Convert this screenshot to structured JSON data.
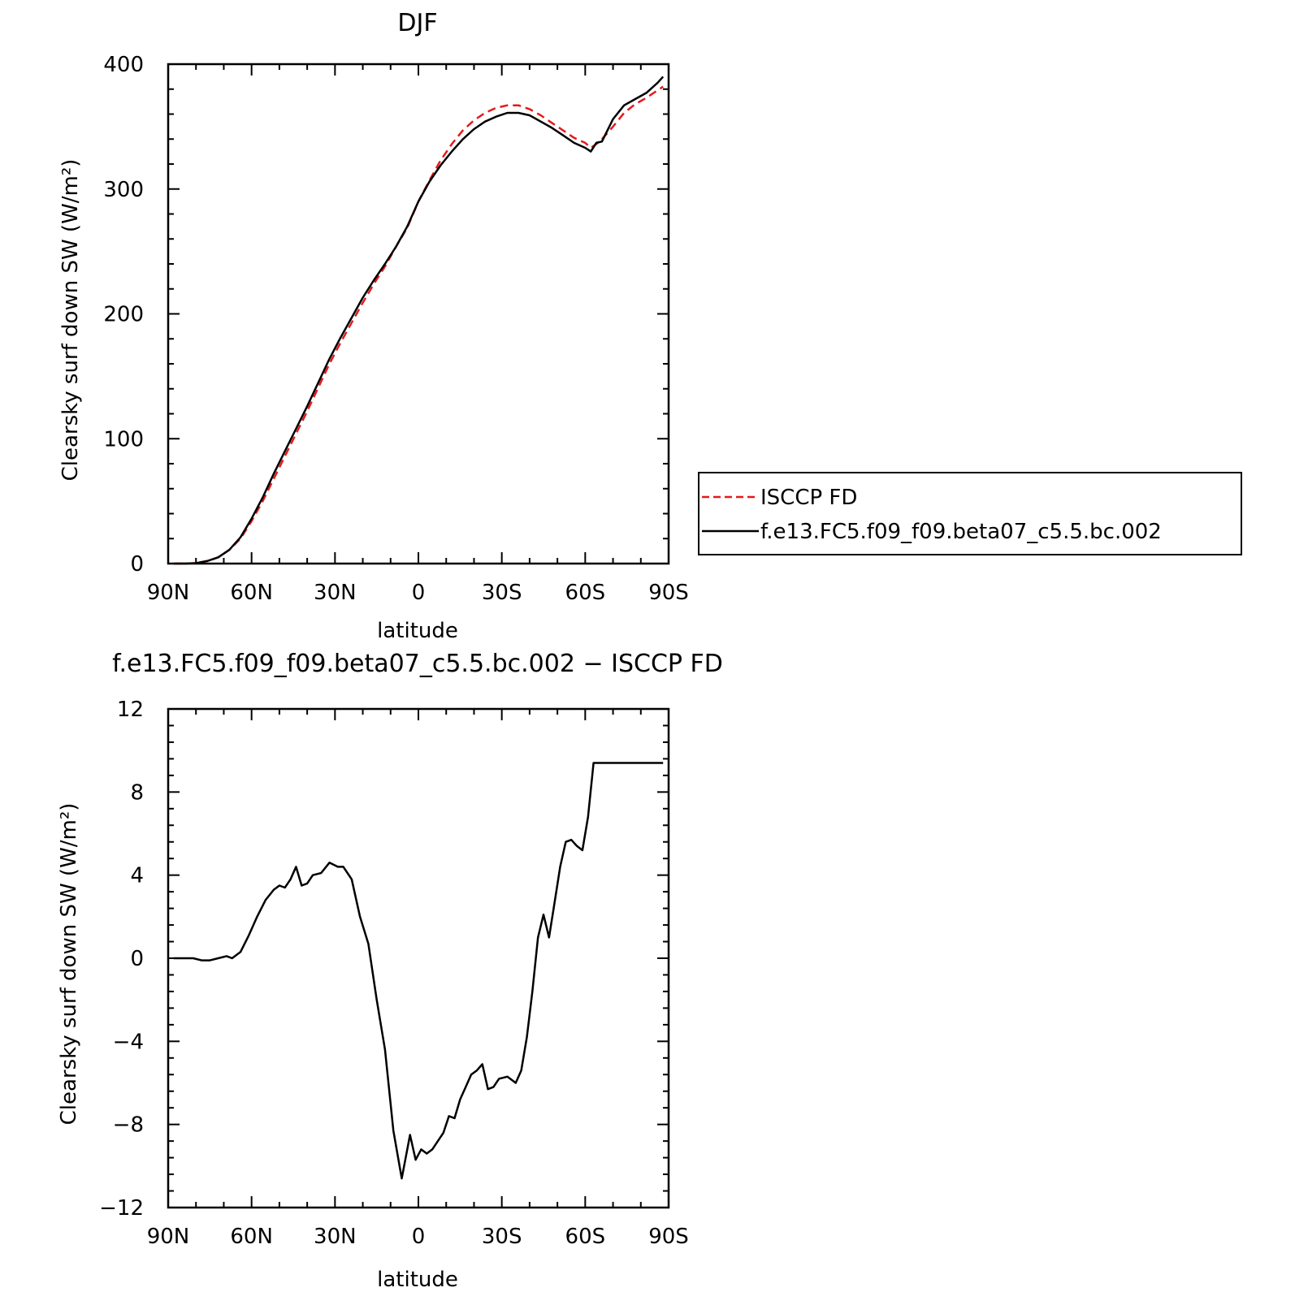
{
  "chart_data": [
    {
      "type": "line",
      "title": "DJF",
      "xlabel": "latitude",
      "ylabel": "Clearsky surf down SW (W/m²)",
      "xlim": [
        90,
        -90
      ],
      "ylim": [
        0,
        400
      ],
      "xticks": [
        90,
        60,
        30,
        0,
        -30,
        -60,
        -90
      ],
      "xtick_labels": [
        "90N",
        "60N",
        "30N",
        "0",
        "30S",
        "60S",
        "90S"
      ],
      "yticks": [
        0,
        100,
        200,
        300,
        400
      ],
      "ytick_labels": [
        "0",
        "100",
        "200",
        "300",
        "400"
      ],
      "grid": false,
      "legend_position": "right, outside plot",
      "series": [
        {
          "name": "ISCCP FD",
          "color": "#e41a1c",
          "dash": "dashed",
          "x": [
            88,
            84,
            80,
            76,
            72,
            68,
            64,
            60,
            56,
            52,
            48,
            44,
            40,
            36,
            32,
            28,
            24,
            20,
            16,
            12,
            8,
            4,
            0,
            -4,
            -8,
            -12,
            -16,
            -20,
            -24,
            -28,
            -32,
            -36,
            -40,
            -44,
            -48,
            -52,
            -56,
            -60,
            -62,
            -64,
            -66,
            -70,
            -74,
            -78,
            -82,
            -86,
            -88
          ],
          "y": [
            0,
            0,
            0.3,
            2,
            5,
            11,
            20,
            34,
            50,
            68,
            86,
            104,
            122,
            141,
            160,
            177,
            193,
            209,
            224,
            238,
            254,
            269,
            290,
            307,
            323,
            336,
            347,
            355,
            361,
            365,
            367,
            367,
            364,
            359,
            353,
            347,
            341,
            337,
            333,
            336,
            340,
            350,
            361,
            368,
            373,
            379,
            382
          ]
        },
        {
          "name": "f.e13.FC5.f09_f09.beta07_c5.5.bc.002",
          "color": "#000000",
          "dash": "solid",
          "x": [
            88,
            84,
            80,
            76,
            72,
            68,
            64,
            60,
            56,
            52,
            48,
            44,
            40,
            36,
            32,
            28,
            24,
            20,
            16,
            12,
            8,
            4,
            0,
            -4,
            -8,
            -12,
            -16,
            -20,
            -24,
            -28,
            -32,
            -36,
            -40,
            -44,
            -48,
            -52,
            -56,
            -60,
            -62,
            -64,
            -66,
            -70,
            -74,
            -78,
            -82,
            -86,
            -88
          ],
          "y": [
            0,
            0,
            0.3,
            2,
            5,
            11,
            21,
            36,
            53,
            72,
            90,
            108,
            126,
            145,
            164,
            181,
            197,
            213,
            227,
            240,
            254,
            270,
            290,
            306,
            319,
            330,
            340,
            348,
            354,
            358,
            361,
            361,
            359,
            354,
            349,
            343,
            337,
            333,
            330,
            337,
            338,
            356,
            367,
            372,
            377,
            385,
            390
          ]
        }
      ]
    },
    {
      "type": "line",
      "title": "f.e13.FC5.f09_f09.beta07_c5.5.bc.002 − ISCCP FD",
      "xlabel": "latitude",
      "ylabel": "Clearsky surf down SW (W/m²)",
      "xlim": [
        90,
        -90
      ],
      "ylim": [
        -12,
        12
      ],
      "xticks": [
        90,
        60,
        30,
        0,
        -30,
        -60,
        -90
      ],
      "xtick_labels": [
        "90N",
        "60N",
        "30N",
        "0",
        "30S",
        "60S",
        "90S"
      ],
      "yticks": [
        -12,
        -8,
        -4,
        0,
        4,
        8,
        12
      ],
      "ytick_labels": [
        "−12",
        "−8",
        "−4",
        "0",
        "4",
        "8",
        "12"
      ],
      "grid": false,
      "series": [
        {
          "color": "#000000",
          "dash": "solid",
          "x": [
            88,
            84,
            81,
            78,
            75,
            72,
            69,
            67,
            64,
            61,
            58,
            55,
            52,
            50,
            48,
            46,
            44,
            42,
            40,
            38,
            35,
            32,
            29,
            27,
            24,
            21,
            18,
            15,
            12,
            9,
            6,
            3,
            1,
            -1,
            -3,
            -5,
            -7,
            -9,
            -11,
            -13,
            -15,
            -17,
            -19,
            -21,
            -23,
            -25,
            -27,
            -29,
            -32,
            -35,
            -37,
            -39,
            -41,
            -43,
            -45,
            -47,
            -49,
            -51,
            -53,
            -55,
            -57,
            -59,
            -61,
            -63,
            -65,
            -67,
            -69,
            -71,
            -73,
            -75,
            -77,
            -79,
            -81,
            -84,
            -86,
            -88
          ],
          "y": [
            0,
            0,
            0,
            -0.1,
            -0.1,
            0,
            0.1,
            0,
            0.3,
            1.1,
            2.0,
            2.8,
            3.3,
            3.5,
            3.4,
            3.8,
            4.4,
            3.5,
            3.6,
            4.0,
            4.1,
            4.6,
            4.4,
            4.4,
            3.8,
            2.0,
            0.7,
            -2.0,
            -4.4,
            -8.3,
            -10.6,
            -8.5,
            -9.7,
            -9.2,
            -9.4,
            -9.2,
            -8.8,
            -8.4,
            -7.6,
            -7.7,
            -6.8,
            -6.2,
            -5.6,
            -5.4,
            -5.1,
            -6.3,
            -6.2,
            -5.8,
            -5.7,
            -6.0,
            -5.4,
            -3.8,
            -1.6,
            1.0,
            2.1,
            1.0,
            2.7,
            4.4,
            5.6,
            5.7,
            5.4,
            5.2,
            6.8,
            9.4,
            9.4,
            9.4,
            9.4,
            9.4,
            9.4,
            9.4,
            9.4,
            9.4,
            9.4,
            9.4,
            9.4,
            9.4
          ]
        }
      ]
    }
  ]
}
